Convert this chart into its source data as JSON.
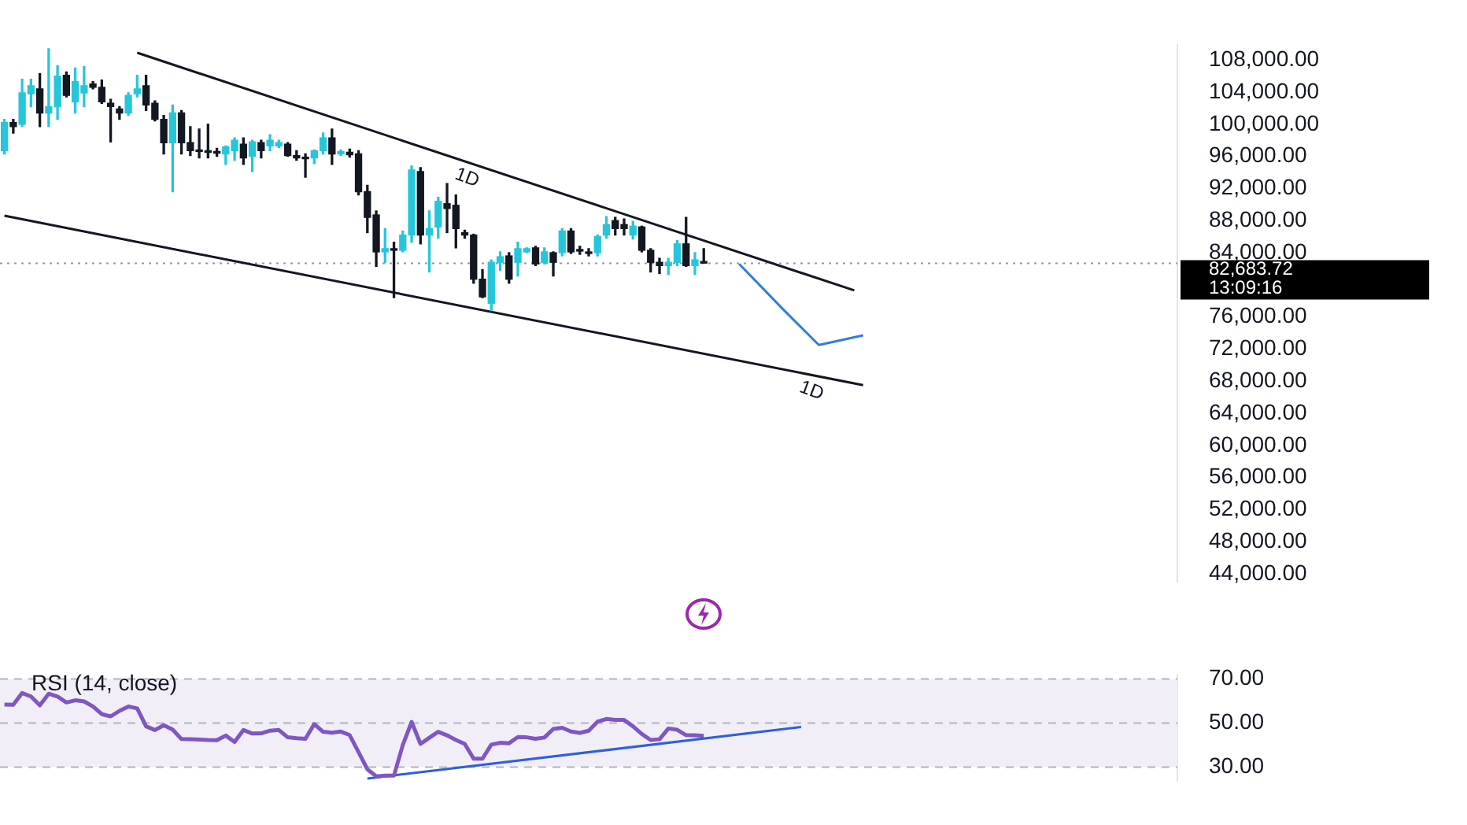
{
  "chart_data": [
    {
      "type": "candlestick",
      "categories": [
        null,
        null,
        null,
        null,
        null,
        null,
        null,
        null,
        null,
        null,
        null,
        null,
        null,
        null,
        null,
        null,
        null,
        null,
        null,
        null,
        null,
        null,
        null,
        null,
        null,
        null,
        null,
        null,
        null,
        null,
        null,
        null,
        null,
        null,
        null,
        null,
        null,
        null,
        null,
        null,
        null,
        null,
        null,
        null,
        null,
        null,
        null,
        null,
        null,
        null,
        null,
        null,
        null,
        null,
        null,
        null,
        null,
        null,
        null,
        null,
        null,
        null,
        null,
        null,
        null,
        null,
        null,
        null,
        null,
        null,
        null,
        null,
        null,
        null,
        null,
        null,
        null,
        null,
        null,
        null,
        null,
        null,
        null,
        null,
        null,
        null,
        null,
        null,
        null,
        null,
        null,
        null,
        null,
        null,
        null,
        null,
        null,
        null,
        null,
        null,
        null,
        null,
        null,
        null,
        null,
        null,
        null,
        null,
        null,
        null,
        null,
        null,
        null,
        null,
        null,
        null,
        null,
        null,
        null,
        null,
        null,
        null,
        null,
        null,
        null,
        null,
        null,
        null,
        null,
        null,
        null,
        null,
        null
      ],
      "ohlc": [
        [
          96700,
          100600,
          96300,
          100200
        ],
        [
          100200,
          100600,
          98900,
          99700
        ],
        [
          100000,
          105600,
          99700,
          103900
        ],
        [
          103800,
          105600,
          102200,
          104800
        ],
        [
          104400,
          106300,
          99700,
          101400
        ],
        [
          101400,
          109400,
          99700,
          102200
        ],
        [
          102200,
          107300,
          100600,
          106000
        ],
        [
          106100,
          106500,
          103400,
          103600
        ],
        [
          102800,
          107000,
          101400,
          105300
        ],
        [
          103900,
          107200,
          102200,
          104800
        ],
        [
          105000,
          105300,
          104400,
          104600
        ],
        [
          104600,
          105500,
          102600,
          102800
        ],
        [
          102600,
          103100,
          97800,
          102200
        ],
        [
          101900,
          102200,
          100600,
          101400
        ],
        [
          101400,
          103900,
          101100,
          103600
        ],
        [
          103800,
          106100,
          103400,
          104400
        ],
        [
          104800,
          106100,
          101700,
          102400
        ],
        [
          102600,
          102900,
          100400,
          100600
        ],
        [
          100600,
          101100,
          96300,
          97700
        ],
        [
          97700,
          102400,
          91600,
          101400
        ],
        [
          101400,
          101700,
          96300,
          97700
        ],
        [
          97700,
          99700,
          96100,
          96700
        ],
        [
          96700,
          99400,
          95800,
          96600
        ],
        [
          96600,
          100000,
          95800,
          96500
        ],
        [
          96500,
          97000,
          96000,
          96400
        ],
        [
          96300,
          97300,
          95000,
          97200
        ],
        [
          96700,
          98300,
          95500,
          98000
        ],
        [
          97500,
          98300,
          95000,
          95800
        ],
        [
          96000,
          98000,
          94100,
          97800
        ],
        [
          97700,
          98000,
          95800,
          96700
        ],
        [
          97300,
          98700,
          96700,
          98000
        ],
        [
          97300,
          98000,
          97100,
          97700
        ],
        [
          97500,
          97700,
          96000,
          96100
        ],
        [
          96100,
          96700,
          95500,
          95800
        ],
        [
          95900,
          96300,
          93400,
          95700
        ],
        [
          95800,
          96800,
          95100,
          96700
        ],
        [
          96700,
          98900,
          96300,
          98300
        ],
        [
          98300,
          99400,
          95000,
          96300
        ],
        [
          96300,
          96800,
          96100,
          96600
        ],
        [
          96500,
          96900,
          95900,
          96200
        ],
        [
          96300,
          96700,
          91200,
          91600
        ],
        [
          91600,
          92400,
          86500,
          88400
        ],
        [
          88700,
          89200,
          82300,
          84100
        ],
        [
          84100,
          87000,
          82800,
          84500
        ],
        [
          84500,
          85300,
          78400,
          84300
        ],
        [
          84300,
          86700,
          84100,
          86200
        ],
        [
          86200,
          94800,
          85300,
          94300
        ],
        [
          94100,
          94600,
          85100,
          86200
        ],
        [
          86200,
          89200,
          81600,
          87000
        ],
        [
          87200,
          90900,
          85800,
          90400
        ],
        [
          90100,
          92600,
          86500,
          89500
        ],
        [
          89900,
          91200,
          84600,
          87000
        ],
        [
          86500,
          86800,
          85800,
          86200
        ],
        [
          86200,
          86300,
          80200,
          80700
        ],
        [
          80700,
          81900,
          78400,
          78500
        ],
        [
          77700,
          83100,
          76800,
          82800
        ],
        [
          82800,
          84100,
          81800,
          83500
        ],
        [
          83600,
          84000,
          80200,
          80700
        ],
        [
          82800,
          85300,
          81100,
          84500
        ],
        [
          84100,
          84600,
          84000,
          84500
        ],
        [
          84600,
          84800,
          82400,
          82600
        ],
        [
          82800,
          84600,
          82600,
          84100
        ],
        [
          84000,
          84100,
          81100,
          82800
        ],
        [
          84000,
          87000,
          83600,
          86700
        ],
        [
          86700,
          87000,
          83900,
          84100
        ],
        [
          84300,
          84800,
          83800,
          84200
        ],
        [
          84000,
          84500,
          83600,
          83900
        ],
        [
          84000,
          86200,
          83600,
          86000
        ],
        [
          86200,
          88500,
          85800,
          87500
        ],
        [
          88000,
          88400,
          86200,
          87000
        ],
        [
          87500,
          88200,
          86200,
          87000
        ],
        [
          86200,
          87900,
          85700,
          87300
        ],
        [
          87200,
          87300,
          84100,
          84300
        ],
        [
          84300,
          84500,
          81600,
          82800
        ],
        [
          82800,
          83300,
          81400,
          82400
        ],
        [
          82400,
          83300,
          81300,
          82800
        ],
        [
          82800,
          85500,
          82400,
          85100
        ],
        [
          85100,
          88400,
          82300,
          82400
        ],
        [
          82400,
          84000,
          81300,
          83100
        ],
        [
          82900,
          84500,
          82700,
          82700
        ],
        null,
        null,
        null,
        null,
        null,
        null,
        null,
        null,
        null,
        null,
        null,
        null,
        null,
        null,
        null,
        null,
        null,
        null,
        null,
        null,
        null,
        null,
        null,
        null,
        null,
        null,
        null,
        null,
        null,
        null,
        null,
        null,
        null,
        null,
        null,
        null,
        null,
        null,
        null,
        null,
        null,
        null,
        null,
        null,
        null,
        null,
        null,
        null,
        null,
        null,
        null,
        null,
        null
      ],
      "colors": [
        "#26c6da",
        "#131722",
        "#26c6da",
        "#26c6da",
        "#131722",
        "#26c6da",
        "#26c6da",
        "#131722",
        "#26c6da",
        "#26c6da",
        "#131722",
        "#131722",
        "#131722",
        "#131722",
        "#26c6da",
        "#26c6da",
        "#131722",
        "#131722",
        "#131722",
        "#26c6da",
        "#131722",
        "#131722",
        "#131722",
        "#131722",
        "#131722",
        "#26c6da",
        "#26c6da",
        "#131722",
        "#26c6da",
        "#131722",
        "#26c6da",
        "#26c6da",
        "#131722",
        "#131722",
        "#131722",
        "#26c6da",
        "#26c6da",
        "#131722",
        "#26c6da",
        "#131722",
        "#131722",
        "#131722",
        "#131722",
        "#26c6da",
        "#131722",
        "#26c6da",
        "#26c6da",
        "#131722",
        "#26c6da",
        "#26c6da",
        "#131722",
        "#131722",
        "#131722",
        "#131722",
        "#131722",
        "#26c6da",
        "#26c6da",
        "#131722",
        "#26c6da",
        "#26c6da",
        "#131722",
        "#26c6da",
        "#131722",
        "#26c6da",
        "#131722",
        "#131722",
        "#131722",
        "#26c6da",
        "#26c6da",
        "#131722",
        "#131722",
        "#26c6da",
        "#131722",
        "#131722",
        "#131722",
        "#26c6da",
        "#26c6da",
        "#131722",
        "#26c6da",
        "#131722",
        null,
        null,
        null,
        null,
        null,
        null,
        null,
        null,
        null,
        null,
        null,
        null,
        null,
        null,
        null,
        null,
        null,
        null,
        null,
        null,
        null,
        null,
        null,
        null,
        null,
        null,
        null,
        null,
        null,
        null,
        null,
        null,
        null,
        null,
        null,
        null,
        null,
        null,
        null,
        null,
        null,
        null,
        null,
        null,
        null,
        null,
        null,
        null,
        null,
        null,
        null,
        null,
        null
      ],
      "series": [
        {
          "type": "line",
          "color": "#131722",
          "values": [
            null,
            null,
            null,
            null,
            null,
            null,
            null,
            null,
            null,
            null,
            null,
            null,
            null,
            null,
            null,
            108900,
            null,
            null,
            null,
            null,
            null,
            null,
            null,
            null,
            null,
            null,
            null,
            null,
            null,
            null,
            null,
            null,
            null,
            null,
            null,
            null,
            null,
            null,
            null,
            null,
            null,
            null,
            null,
            null,
            null,
            null,
            null,
            null,
            null,
            null,
            null,
            null,
            null,
            null,
            null,
            null,
            null,
            null,
            null,
            null,
            null,
            null,
            null,
            null,
            null,
            null,
            null,
            null,
            null,
            null,
            null,
            null,
            null,
            null,
            null,
            null,
            null,
            null,
            null,
            null,
            null,
            null,
            null,
            null,
            null,
            null,
            null,
            null,
            null,
            null,
            null,
            null,
            null,
            null,
            null,
            null,
            79300,
            null,
            null,
            null,
            null,
            null,
            null,
            null,
            null,
            null,
            null,
            null,
            null,
            null,
            null,
            null,
            null,
            null,
            null,
            null,
            null,
            null,
            null,
            null,
            null,
            null,
            null,
            null,
            null,
            null,
            null,
            null,
            null,
            null,
            null,
            null,
            null
          ]
        },
        {
          "type": "line",
          "color": "#131722",
          "values": [
            88600,
            null,
            null,
            null,
            null,
            null,
            null,
            null,
            null,
            null,
            null,
            null,
            null,
            null,
            null,
            null,
            null,
            null,
            null,
            null,
            null,
            null,
            null,
            null,
            null,
            null,
            null,
            null,
            null,
            null,
            null,
            null,
            null,
            null,
            null,
            null,
            null,
            null,
            null,
            null,
            null,
            null,
            null,
            null,
            null,
            null,
            null,
            null,
            null,
            null,
            null,
            null,
            null,
            null,
            null,
            null,
            null,
            null,
            null,
            null,
            null,
            null,
            null,
            null,
            null,
            null,
            null,
            null,
            null,
            null,
            null,
            null,
            null,
            null,
            null,
            null,
            null,
            null,
            null,
            null,
            null,
            null,
            null,
            null,
            null,
            null,
            null,
            null,
            null,
            null,
            null,
            null,
            null,
            null,
            null,
            null,
            null,
            67500,
            null,
            null,
            null,
            null,
            null,
            null,
            null,
            null,
            null,
            null,
            null,
            null,
            null,
            null,
            null,
            null,
            null,
            null,
            null,
            null,
            null,
            null,
            null,
            null,
            null,
            null,
            null,
            null,
            null,
            null,
            null,
            null,
            null,
            null,
            null
          ]
        },
        {
          "type": "line",
          "color": "#2f7de1",
          "values": [
            null,
            null,
            null,
            null,
            null,
            null,
            null,
            null,
            null,
            null,
            null,
            null,
            null,
            null,
            null,
            null,
            null,
            null,
            null,
            null,
            null,
            null,
            null,
            null,
            null,
            null,
            null,
            null,
            null,
            null,
            null,
            null,
            null,
            null,
            null,
            null,
            null,
            null,
            null,
            null,
            null,
            null,
            null,
            null,
            null,
            null,
            null,
            null,
            null,
            null,
            null,
            null,
            null,
            null,
            null,
            null,
            null,
            null,
            null,
            null,
            null,
            null,
            null,
            null,
            null,
            null,
            null,
            null,
            null,
            null,
            null,
            null,
            null,
            null,
            null,
            null,
            null,
            null,
            null,
            null,
            null,
            null,
            null,
            82600,
            null,
            null,
            null,
            null,
            76900,
            null,
            null,
            null,
            72500,
            null,
            null,
            null,
            null,
            73700,
            null,
            null,
            null,
            null,
            null,
            null,
            null,
            null,
            null,
            null,
            null,
            null,
            null,
            null,
            null,
            null,
            null,
            null,
            null,
            null,
            null,
            null,
            null,
            null,
            null,
            null,
            null,
            null,
            null,
            null,
            null,
            null,
            null,
            null,
            null
          ]
        }
      ],
      "ylim": [
        43000,
        109900
      ],
      "yticks": [
        {
          "value": 44000,
          "label": "44,000.00"
        },
        {
          "value": 48000,
          "label": "48,000.00"
        },
        {
          "value": 52000,
          "label": "52,000.00"
        },
        {
          "value": 56000,
          "label": "56,000.00"
        },
        {
          "value": 60000,
          "label": "60,000.00"
        },
        {
          "value": 64000,
          "label": "64,000.00"
        },
        {
          "value": 68000,
          "label": "68,000.00"
        },
        {
          "value": 72000,
          "label": "72,000.00"
        },
        {
          "value": 76000,
          "label": "76,000.00"
        },
        {
          "value": 84000,
          "label": "84,000.00"
        },
        {
          "value": 88000,
          "label": "88,000.00"
        },
        {
          "value": 92000,
          "label": "92,000.00"
        },
        {
          "value": 96000,
          "label": "96,000.00"
        },
        {
          "value": 100000,
          "label": "100,000.00"
        },
        {
          "value": 104000,
          "label": "104,000.00"
        },
        {
          "value": 108000,
          "label": "108,000.00"
        }
      ],
      "ref_lines": [
        {
          "axis": "y",
          "value": 82683.72,
          "label": "82,683.72",
          "color": "#9598a1",
          "line_style": "dotted"
        }
      ],
      "annotations": [
        "13:09:16",
        "1D",
        "1D"
      ],
      "tick_labels": "y",
      "grid": false,
      "legend": false,
      "marker": "none"
    },
    {
      "type": "line",
      "title": "RSI (14, close)",
      "categories": [
        null,
        null,
        null,
        null,
        null,
        null,
        null,
        null,
        null,
        null,
        null,
        null,
        null,
        null,
        null,
        null,
        null,
        null,
        null,
        null,
        null,
        null,
        null,
        null,
        null,
        null,
        null,
        null,
        null,
        null,
        null,
        null,
        null,
        null,
        null,
        null,
        null,
        null,
        null,
        null,
        null,
        null,
        null,
        null,
        null,
        null,
        null,
        null,
        null,
        null,
        null,
        null,
        null,
        null,
        null,
        null,
        null,
        null,
        null,
        null,
        null,
        null,
        null,
        null,
        null,
        null,
        null,
        null,
        null,
        null,
        null,
        null,
        null,
        null,
        null,
        null,
        null,
        null,
        null,
        null,
        null,
        null,
        null,
        null,
        null,
        null,
        null,
        null,
        null,
        null,
        null,
        null,
        null,
        null,
        null,
        null,
        null,
        null,
        null,
        null,
        null,
        null,
        null,
        null,
        null,
        null,
        null,
        null,
        null,
        null,
        null,
        null,
        null,
        null,
        null,
        null,
        null,
        null,
        null,
        null,
        null,
        null,
        null,
        null,
        null,
        null,
        null,
        null,
        null,
        null,
        null,
        null,
        null
      ],
      "series": [
        {
          "type": "line",
          "color": "#7e57c2",
          "values": [
            58.4,
            58.3,
            63.6,
            62,
            58,
            63.3,
            62,
            59.3,
            60.3,
            59.8,
            57.5,
            54,
            53,
            55.5,
            57.5,
            56.6,
            48.5,
            46.8,
            49,
            47,
            42.7,
            42.6,
            42.5,
            42.3,
            42.2,
            44.3,
            41.4,
            46.8,
            45.2,
            45.3,
            46.5,
            46.8,
            43.5,
            43.1,
            42.8,
            49.5,
            46,
            45.6,
            46.1,
            44.5,
            36.8,
            29,
            25.8,
            26.1,
            26.1,
            40,
            50.5,
            40.5,
            43.3,
            46,
            44.4,
            42.3,
            40.5,
            33.8,
            33.8,
            40.2,
            41,
            40.8,
            43.6,
            43.5,
            42.8,
            43.4,
            47.3,
            47.8,
            46.1,
            45.5,
            46.5,
            50.6,
            51.8,
            51.4,
            51.4,
            48.5,
            45,
            42.3,
            42.6,
            47.5,
            46.9,
            44.5,
            44.4,
            44.2,
            null,
            null,
            null,
            null,
            null,
            null,
            null,
            null,
            null,
            null,
            null,
            null,
            null,
            null,
            null,
            null,
            null,
            null,
            null,
            null,
            null,
            null,
            null,
            null,
            null,
            null,
            null,
            null,
            null,
            null,
            null,
            null,
            null,
            null,
            null,
            null,
            null,
            null,
            null,
            null,
            null,
            null,
            null,
            null,
            null,
            null,
            null,
            null,
            null,
            null,
            null,
            null,
            null
          ]
        },
        {
          "type": "line",
          "color": "#2f5fd8",
          "values": [
            null,
            null,
            null,
            null,
            null,
            null,
            null,
            null,
            null,
            null,
            null,
            null,
            null,
            null,
            null,
            null,
            null,
            null,
            null,
            null,
            null,
            null,
            null,
            null,
            null,
            null,
            null,
            null,
            null,
            null,
            null,
            null,
            null,
            null,
            null,
            null,
            null,
            null,
            null,
            null,
            null,
            24.8,
            null,
            null,
            null,
            null,
            null,
            null,
            null,
            null,
            null,
            null,
            null,
            null,
            null,
            null,
            null,
            null,
            null,
            null,
            null,
            null,
            null,
            null,
            null,
            null,
            null,
            null,
            null,
            null,
            null,
            null,
            null,
            null,
            null,
            null,
            null,
            null,
            null,
            null,
            null,
            null,
            null,
            null,
            null,
            null,
            null,
            null,
            null,
            null,
            48.2,
            null,
            null,
            null,
            null,
            null,
            null,
            null,
            null,
            null,
            null,
            null,
            null,
            null,
            null,
            null,
            null,
            null,
            null,
            null,
            null,
            null,
            null,
            null,
            null,
            null,
            null,
            null,
            null,
            null,
            null,
            null,
            null,
            null,
            null,
            null,
            null,
            null,
            null,
            null,
            null,
            null,
            null
          ]
        }
      ],
      "ylim": [
        24,
        72
      ],
      "yticks": [
        {
          "value": 30,
          "label": "30.00"
        },
        {
          "value": 50,
          "label": "50.00"
        },
        {
          "value": 70,
          "label": "70.00"
        }
      ],
      "bands": [
        {
          "axis": "y",
          "from": 30,
          "to": 70,
          "color": "#f1eef8"
        }
      ],
      "ref_lines": [
        {
          "axis": "y",
          "value": 70,
          "color": "#b2b5be",
          "line_style": "dashed"
        },
        {
          "axis": "y",
          "value": 50,
          "color": "#b2b5be",
          "line_style": "dashed"
        },
        {
          "axis": "y",
          "value": 30,
          "color": "#b2b5be",
          "line_style": "dashed"
        }
      ],
      "tick_labels": "y",
      "grid": false,
      "legend": false,
      "marker": "none"
    }
  ]
}
